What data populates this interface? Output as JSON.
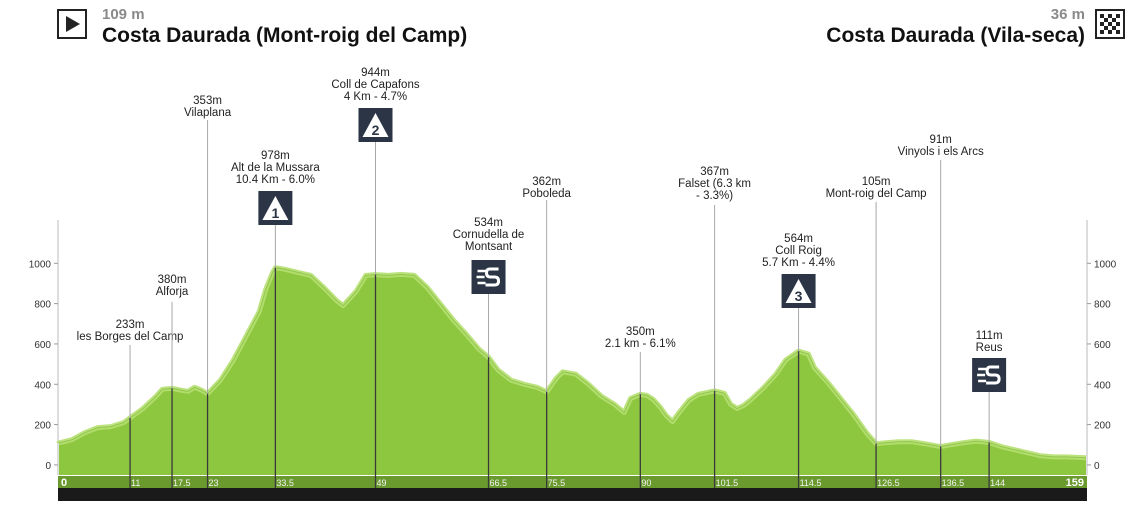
{
  "header": {
    "start": {
      "altitude": "109 m",
      "name": "Costa Daurada (Mont-roig del Camp)",
      "icon": "play-icon"
    },
    "finish": {
      "altitude": "36 m",
      "name": "Costa Daurada (Vila-seca)",
      "icon": "checkered-flag-icon"
    }
  },
  "colors": {
    "profile_fill": "#8dc63f",
    "profile_light": "#b5df70",
    "profile_dark": "#7ab534",
    "axis_bar": "#1a1a1a",
    "marker_line": "#999999",
    "badge": "#2b3545",
    "km_label": "#f3f3f3",
    "km_end": "#8dc63f"
  },
  "chart_data": {
    "type": "area",
    "x_unit": "km",
    "y_unit": "m",
    "xlim": [
      0,
      159
    ],
    "ylim": [
      -50,
      1180
    ],
    "y_ticks": [
      0,
      200,
      400,
      600,
      800,
      1000
    ],
    "x_tick_labels": [
      "0",
      "11",
      "17.5",
      "23",
      "33.5",
      "49",
      "66.5",
      "75.5",
      "90",
      "101.5",
      "114.5",
      "126.5",
      "136.5",
      "144",
      "159"
    ],
    "profile": [
      [
        0,
        109
      ],
      [
        2,
        125
      ],
      [
        4,
        160
      ],
      [
        6,
        185
      ],
      [
        8,
        190
      ],
      [
        10,
        210
      ],
      [
        11,
        233
      ],
      [
        13,
        280
      ],
      [
        15,
        340
      ],
      [
        16,
        375
      ],
      [
        17.5,
        380
      ],
      [
        19,
        370
      ],
      [
        20,
        365
      ],
      [
        21,
        385
      ],
      [
        22,
        372
      ],
      [
        23,
        353
      ],
      [
        25,
        420
      ],
      [
        27,
        520
      ],
      [
        29,
        640
      ],
      [
        31,
        760
      ],
      [
        32,
        870
      ],
      [
        33,
        950
      ],
      [
        33.5,
        978
      ],
      [
        35,
        970
      ],
      [
        37,
        955
      ],
      [
        39,
        940
      ],
      [
        41,
        880
      ],
      [
        43,
        815
      ],
      [
        44,
        790
      ],
      [
        46,
        860
      ],
      [
        47.5,
        940
      ],
      [
        49,
        944
      ],
      [
        51,
        940
      ],
      [
        53,
        945
      ],
      [
        55,
        940
      ],
      [
        57,
        880
      ],
      [
        59,
        800
      ],
      [
        61,
        720
      ],
      [
        63,
        650
      ],
      [
        65,
        575
      ],
      [
        66.5,
        534
      ],
      [
        68,
        470
      ],
      [
        70,
        420
      ],
      [
        72,
        400
      ],
      [
        74,
        385
      ],
      [
        75.5,
        362
      ],
      [
        77,
        430
      ],
      [
        78,
        462
      ],
      [
        80,
        450
      ],
      [
        82,
        400
      ],
      [
        84,
        340
      ],
      [
        86,
        300
      ],
      [
        87.5,
        260
      ],
      [
        88.5,
        330
      ],
      [
        90,
        350
      ],
      [
        91,
        345
      ],
      [
        92,
        325
      ],
      [
        93,
        290
      ],
      [
        94,
        245
      ],
      [
        95,
        215
      ],
      [
        96,
        260
      ],
      [
        97.5,
        320
      ],
      [
        99,
        350
      ],
      [
        101.5,
        367
      ],
      [
        103,
        355
      ],
      [
        104,
        300
      ],
      [
        105,
        280
      ],
      [
        106,
        295
      ],
      [
        107,
        320
      ],
      [
        109,
        380
      ],
      [
        111,
        450
      ],
      [
        112.5,
        520
      ],
      [
        114.5,
        564
      ],
      [
        116,
        550
      ],
      [
        117,
        480
      ],
      [
        119,
        410
      ],
      [
        121,
        330
      ],
      [
        123,
        250
      ],
      [
        125,
        160
      ],
      [
        126.5,
        105
      ],
      [
        128,
        110
      ],
      [
        130,
        115
      ],
      [
        132,
        115
      ],
      [
        134,
        105
      ],
      [
        136.5,
        91
      ],
      [
        138,
        100
      ],
      [
        140,
        110
      ],
      [
        142,
        118
      ],
      [
        144,
        111
      ],
      [
        146,
        90
      ],
      [
        148,
        75
      ],
      [
        150,
        60
      ],
      [
        152,
        45
      ],
      [
        154,
        40
      ],
      [
        156,
        40
      ],
      [
        159,
        36
      ]
    ],
    "points": [
      {
        "km": 11,
        "altitude": 233,
        "label_alt": "233m",
        "name": [
          "les Borges del Camp"
        ],
        "badge": ""
      },
      {
        "km": 17.5,
        "altitude": 380,
        "label_alt": "380m",
        "name": [
          "Alforja"
        ],
        "badge": ""
      },
      {
        "km": 23,
        "altitude": 353,
        "label_alt": "353m",
        "name": [
          "Vilaplana"
        ],
        "badge": ""
      },
      {
        "km": 33.5,
        "altitude": 978,
        "label_alt": "978m",
        "name": [
          "Alt de la Mussara",
          "10.4 Km - 6.0%"
        ],
        "badge": "1"
      },
      {
        "km": 49,
        "altitude": 944,
        "label_alt": "944m",
        "name": [
          "Coll de Capafons",
          "4 Km - 4.7%"
        ],
        "badge": "2"
      },
      {
        "km": 66.5,
        "altitude": 534,
        "label_alt": "534m",
        "name": [
          "Cornudella de",
          "Montsant"
        ],
        "badge": "S"
      },
      {
        "km": 75.5,
        "altitude": 362,
        "label_alt": "362m",
        "name": [
          "Poboleda"
        ],
        "badge": ""
      },
      {
        "km": 90,
        "altitude": 350,
        "label_alt": "350m",
        "name": [
          "2.1 km - 6.1%"
        ],
        "badge": ""
      },
      {
        "km": 101.5,
        "altitude": 367,
        "label_alt": "367m",
        "name": [
          "Falset (6.3 km",
          "- 3.3%)"
        ],
        "badge": ""
      },
      {
        "km": 114.5,
        "altitude": 564,
        "label_alt": "564m",
        "name": [
          "Coll Roig",
          "5.7 Km - 4.4%"
        ],
        "badge": "3"
      },
      {
        "km": 126.5,
        "altitude": 105,
        "label_alt": "105m",
        "name": [
          "Mont-roig del Camp"
        ],
        "badge": ""
      },
      {
        "km": 136.5,
        "altitude": 91,
        "label_alt": "91m",
        "name": [
          "Vinyols i els Arcs"
        ],
        "badge": ""
      },
      {
        "km": 144,
        "altitude": 111,
        "label_alt": "111m",
        "name": [
          "Reus"
        ],
        "badge": "S"
      }
    ]
  }
}
